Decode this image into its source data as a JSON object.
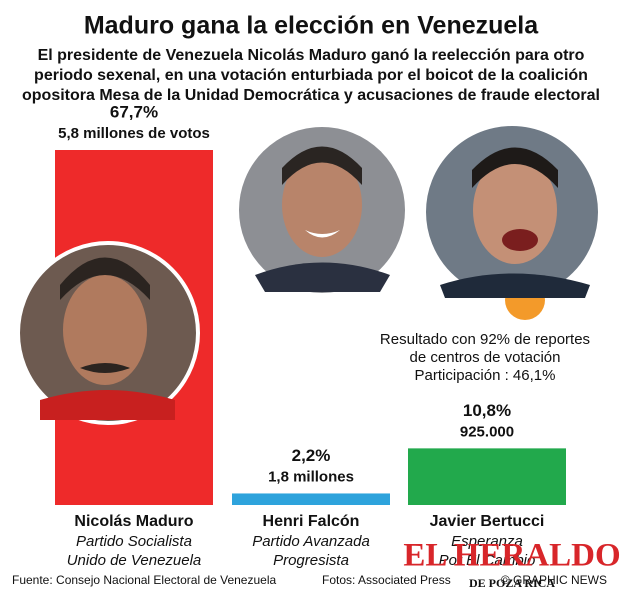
{
  "chart_data": {
    "type": "bar",
    "title": "Maduro gana la elección en Venezuela",
    "subtitle_lines": [
      "El presidente de Venezuela Nicolás Maduro ganó la reelección para otro",
      "periodo sexenal, en una votación enturbiada por el boicot de la coalición",
      "opositora Mesa de la Unidad Democrática y acusaciones de  fraude electoral"
    ],
    "categories": [
      "Nicolás Maduro",
      "Henri Falcón",
      "Javier Bertucci"
    ],
    "parties": [
      [
        "Partido Socialista",
        "Unido de Venezuela"
      ],
      [
        "Partido Avanzada",
        "Progresista"
      ],
      [
        "Esperanza",
        "Por El Cambio"
      ]
    ],
    "values": [
      67.7,
      2.2,
      10.8
    ],
    "value_labels": [
      "67,7%",
      "2,2%",
      "10,8%"
    ],
    "vote_labels": [
      "5,8 millones de votos",
      "1,8 millones",
      "925.000"
    ],
    "colors": [
      "#ee2a2a",
      "#2ea3dc",
      "#22a94c"
    ],
    "note_lines": [
      "Resultado con 92% de reportes",
      "de centros de votación",
      "Participación : 46,1%"
    ],
    "source": "Fuente: Consejo Nacional Electoral de Venezuela",
    "photo_credit": "Fotos: Associated Press",
    "agency": "© GRAPHIC NEWS",
    "brand": "EL HERALDO",
    "brand_sub": "DE POZA RICA"
  }
}
